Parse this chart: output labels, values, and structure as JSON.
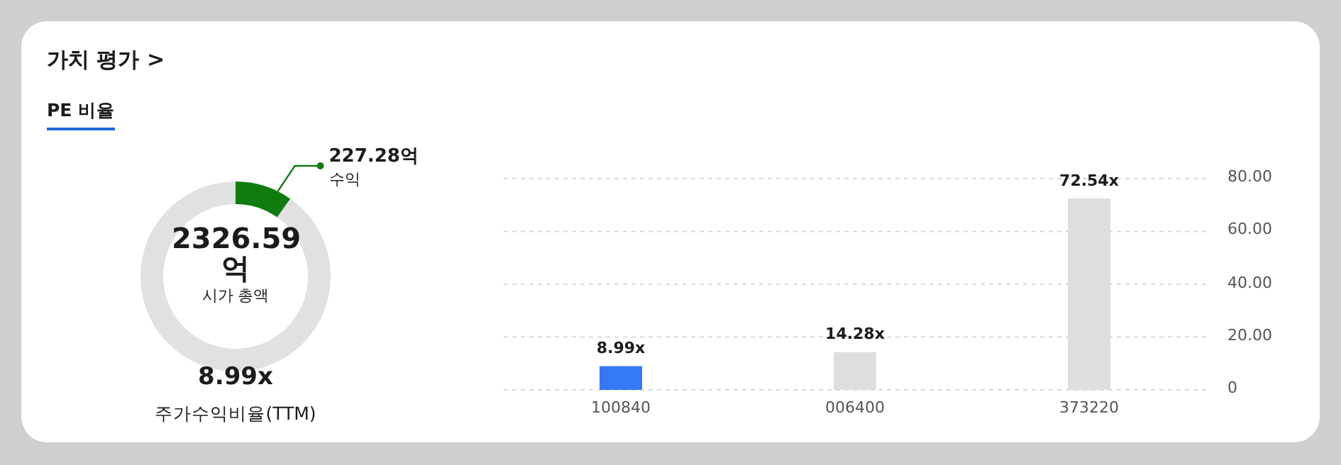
{
  "chart_data": [
    {
      "type": "donut",
      "title": "가치 평가 >",
      "subtitle": "PE 비율",
      "categories": [
        "수익",
        null
      ],
      "values": [
        227.28,
        2099.31
      ],
      "colors": [
        "#107c10",
        "#e1e1e1"
      ],
      "value_labels": [
        "227.28억",
        null
      ],
      "annotations": [
        "2326.59 억",
        "시가 총액",
        "8.99x",
        "주가수익비율(TTM)"
      ]
    },
    {
      "type": "bar",
      "categories": [
        "100840",
        "006400",
        "373220"
      ],
      "values": [
        8.99,
        14.28,
        72.54
      ],
      "colors": [
        "#3478f6",
        "#dedede",
        "#dedede"
      ],
      "value_labels": [
        "8.99x",
        "14.28x",
        "72.54x"
      ],
      "ylim": [
        0,
        80
      ],
      "yticks": [
        {
          "value": 0,
          "label": "0"
        },
        {
          "value": 20,
          "label": "20.00"
        },
        {
          "value": 40,
          "label": "40.00"
        },
        {
          "value": 60,
          "label": "60.00"
        },
        {
          "value": 80,
          "label": "80.00"
        }
      ],
      "grid": "y"
    }
  ]
}
